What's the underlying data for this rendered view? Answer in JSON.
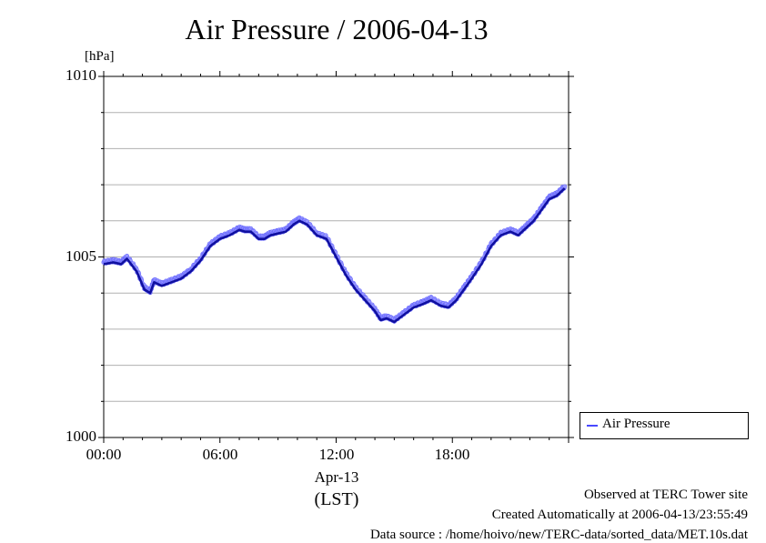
{
  "chart_data": {
    "type": "line",
    "title": "Air Pressure / 2006-04-13",
    "ylabel": "[hPa]",
    "xlabel": "(LST)",
    "x_date_label": "Apr-13",
    "ylim": [
      1000,
      1010
    ],
    "xlim": [
      0,
      23.9
    ],
    "y_ticks": [
      "1000",
      "1005",
      "1010"
    ],
    "x_ticks": [
      {
        "value": 0,
        "label": "00:00"
      },
      {
        "value": 6,
        "label": "06:00"
      },
      {
        "value": 12,
        "label": "12:00"
      },
      {
        "value": 18,
        "label": "18:00"
      }
    ],
    "grid": true,
    "legend_position": "right-bottom",
    "series": [
      {
        "name": "Air Pressure",
        "color": "#4848ff",
        "x": [
          0,
          0.5,
          0.9,
          1.2,
          1.7,
          2.1,
          2.4,
          2.6,
          3.0,
          3.5,
          4.0,
          4.5,
          5.0,
          5.5,
          6.0,
          6.5,
          7.0,
          7.3,
          7.6,
          8.0,
          8.3,
          8.6,
          9.0,
          9.4,
          9.8,
          10.1,
          10.5,
          11.0,
          11.5,
          12.0,
          12.5,
          13.0,
          13.5,
          14.0,
          14.3,
          14.6,
          15.0,
          15.5,
          16.0,
          16.5,
          16.9,
          17.4,
          17.8,
          18.2,
          18.6,
          19.0,
          19.5,
          20.0,
          20.5,
          21.0,
          21.4,
          21.8,
          22.2,
          22.6,
          23.0,
          23.4,
          23.8
        ],
        "y": [
          1004.8,
          1004.85,
          1004.8,
          1004.95,
          1004.6,
          1004.1,
          1004.0,
          1004.3,
          1004.2,
          1004.3,
          1004.4,
          1004.6,
          1004.9,
          1005.3,
          1005.5,
          1005.6,
          1005.75,
          1005.7,
          1005.7,
          1005.5,
          1005.5,
          1005.6,
          1005.65,
          1005.7,
          1005.9,
          1006.0,
          1005.9,
          1005.6,
          1005.5,
          1005.0,
          1004.5,
          1004.1,
          1003.8,
          1003.5,
          1003.25,
          1003.3,
          1003.2,
          1003.4,
          1003.6,
          1003.7,
          1003.8,
          1003.65,
          1003.6,
          1003.8,
          1004.1,
          1004.4,
          1004.8,
          1005.3,
          1005.6,
          1005.7,
          1005.6,
          1005.8,
          1006.0,
          1006.3,
          1006.6,
          1006.7,
          1006.9
        ]
      }
    ]
  },
  "footer": {
    "line1": "Observed at TERC Tower site",
    "line2": "Created Automatically at 2006-04-13/23:55:49",
    "line3": "Data source : /home/hoivo/new/TERC-data/sorted_data/MET.10s.dat"
  }
}
